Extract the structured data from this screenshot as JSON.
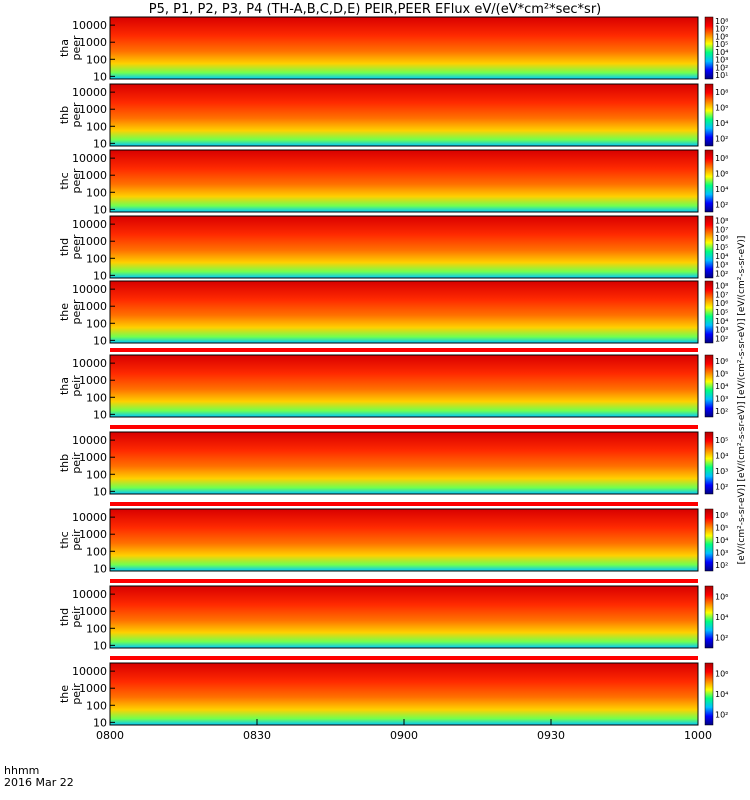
{
  "title": "P5, P1, P2, P3, P4 (TH-A,B,C,D,E) PEIR,PEER EFlux eV/(eV*cm²*sec*sr)",
  "colorbar_label": "[eV/(cm²-s-sr-eV)] [eV/(cm²-s-sr-eV)] [eV/(cm²-s-sr-eV)] [eV/(cm²-s-sr-eV)]",
  "footer": {
    "time_label": "hhmm",
    "date_label": "2016 Mar 22"
  },
  "colors": {
    "jet": [
      "#000080",
      "#0000ff",
      "#00bfff",
      "#00ff80",
      "#ffff00",
      "#ff8000",
      "#ff0000",
      "#b00000"
    ],
    "flag_red": "#ff0000"
  },
  "chart_data": {
    "type": "heatmap",
    "description_panels": "energy-time spectrograms",
    "time_ticks": [
      "0800",
      "0830",
      "0900",
      "0930",
      "1000"
    ],
    "time_range": [
      "0800",
      "1000"
    ],
    "y_axis": {
      "scale": "log",
      "range_eV": [
        7,
        30000
      ],
      "ticks": [
        10,
        100,
        1000,
        10000
      ],
      "tick_labels": [
        "10",
        "100",
        "1000",
        "10000"
      ]
    },
    "panels": [
      {
        "ylabel": "tha peer",
        "colorbar_ticks": [
          "10¹",
          "10²",
          "10³",
          "10⁴",
          "10⁵",
          "10⁶",
          "10⁷",
          "10⁸"
        ]
      },
      {
        "ylabel": "thb peer",
        "colorbar_ticks": [
          "10²",
          "10⁴",
          "10⁶",
          "10⁸"
        ]
      },
      {
        "ylabel": "thc peer",
        "colorbar_ticks": [
          "10²",
          "10⁴",
          "10⁶",
          "10⁸"
        ]
      },
      {
        "ylabel": "thd peer",
        "colorbar_ticks": [
          "10²",
          "10³",
          "10⁴",
          "10⁵",
          "10⁶",
          "10⁷",
          "10⁸"
        ]
      },
      {
        "ylabel": "the peer",
        "colorbar_ticks": [
          "10²",
          "10³",
          "10⁴",
          "10⁵",
          "10⁶",
          "10⁷",
          "10⁸"
        ]
      },
      {
        "ylabel": "tha peir",
        "colorbar_ticks": [
          "10²",
          "10³",
          "10⁴",
          "10⁵",
          "10⁶"
        ]
      },
      {
        "ylabel": "thb peir",
        "colorbar_ticks": [
          "10²",
          "10³",
          "10⁴",
          "10⁵"
        ]
      },
      {
        "ylabel": "thc peir",
        "colorbar_ticks": [
          "10²",
          "10³",
          "10⁴",
          "10⁵",
          "10⁶"
        ]
      },
      {
        "ylabel": "thd peir",
        "colorbar_ticks": [
          "10²",
          "10⁴",
          "10⁶"
        ]
      },
      {
        "ylabel": "the peir",
        "colorbar_ticks": [
          "10²",
          "10⁴",
          "10⁶"
        ]
      }
    ]
  }
}
